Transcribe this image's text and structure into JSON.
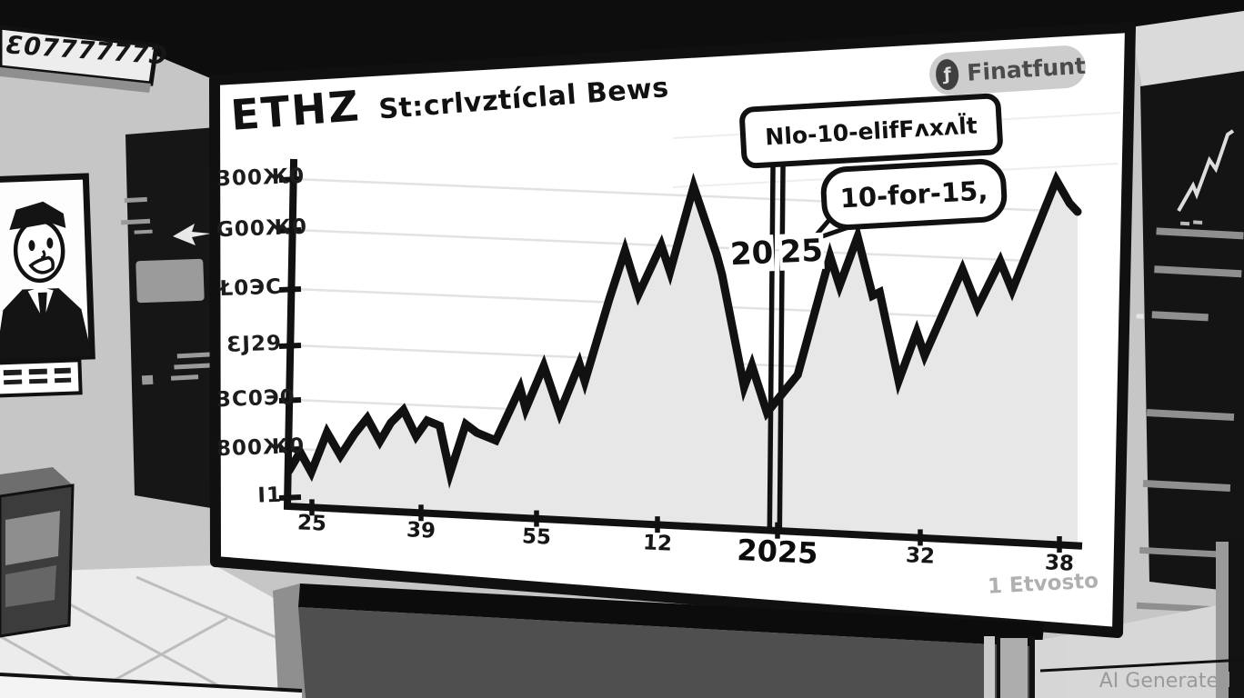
{
  "studio": {
    "ticker_text": "Ɛ0777777Ɔ",
    "watermark": "AI Generated",
    "icons": [
      "news-anchor-illustration",
      "right-arrow-icon",
      "mini-sparkline-icon"
    ]
  },
  "screen": {
    "title_ticker": "ETHZ",
    "title_text": "St:crlvztíclal Bews",
    "badge": {
      "label": "Finatfunt",
      "icon": "coin-icon"
    },
    "callout_top": "Nlo-10-elifFʌxʌl̈t",
    "callout_main": "10-for-15,",
    "vline_year_left": "20",
    "vline_year_right": "25",
    "footnote": "1 Etvosto",
    "y_ticks": [
      "300Ж0",
      "G00Ж0",
      "Ł0ЭС",
      "ƐJ29",
      "3C0Э0",
      "800Ж0",
      "I1"
    ],
    "x_ticks": [
      "25",
      "39",
      "55",
      "12",
      "2025",
      "32",
      "38"
    ]
  },
  "colors": {
    "line": "#111111",
    "area_fill": "#e7e7e7",
    "screen_bg": "#ffffff",
    "badge_bg": "#cdcdcd",
    "muted_text": "#b0b0b0",
    "grid": "#e2e2e2"
  },
  "chart_data": {
    "type": "area",
    "title": "ETHZ St:crlvztíclal Bews",
    "xlabel": "",
    "ylabel": "",
    "x_tick_labels": [
      "25",
      "39",
      "55",
      "12",
      "2025",
      "32",
      "38"
    ],
    "y_tick_labels_top_to_bottom": [
      "300Ж0",
      "G00Ж0",
      "Ł0ЭС",
      "ƐJ29",
      "3C0Э0",
      "800Ж0",
      "I1"
    ],
    "grid": true,
    "legend": false,
    "y_scale": "relative 0-100 (estimated from pixels; axis text is garbled)",
    "series": [
      {
        "name": "ETHZ price",
        "x": [
          0,
          1.4,
          2.8,
          4.8,
          6.5,
          8.3,
          9.9,
          11.5,
          12.9,
          14.5,
          16.1,
          17.5,
          19.1,
          20.4,
          22.4,
          23.8,
          26.2,
          29.3,
          30,
          32.3,
          34.3,
          36.8,
          37.5,
          40.6,
          42.6,
          44.3,
          47.2,
          48.3,
          51.3,
          54.2,
          54.9,
          57.7,
          58.7,
          59.4,
          60.6,
          64.5,
          68.6,
          69.8,
          72.1,
          74,
          74.9,
          77.3,
          79.6,
          80.6,
          85.4,
          87.3,
          90.2,
          91.7,
          97.3,
          99,
          100
        ],
        "y": [
          13,
          19,
          12,
          25,
          17,
          24,
          29,
          21,
          27,
          31,
          22,
          27,
          25,
          9,
          25,
          22,
          19,
          36,
          29,
          43,
          27,
          43,
          37,
          64,
          80,
          65,
          81,
          72,
          100,
          77,
          70,
          32,
          39,
          33,
          23,
          35,
          74,
          64,
          80,
          60,
          61,
          31,
          47,
          39,
          67,
          54,
          69,
          59,
          95,
          87,
          84
        ]
      }
    ],
    "annotations": {
      "vline_x": 61.8,
      "vline_label": "2025",
      "callout1": "Nlo-10-elifFʌxʌl̈t",
      "callout2": "10-for-15,"
    }
  }
}
